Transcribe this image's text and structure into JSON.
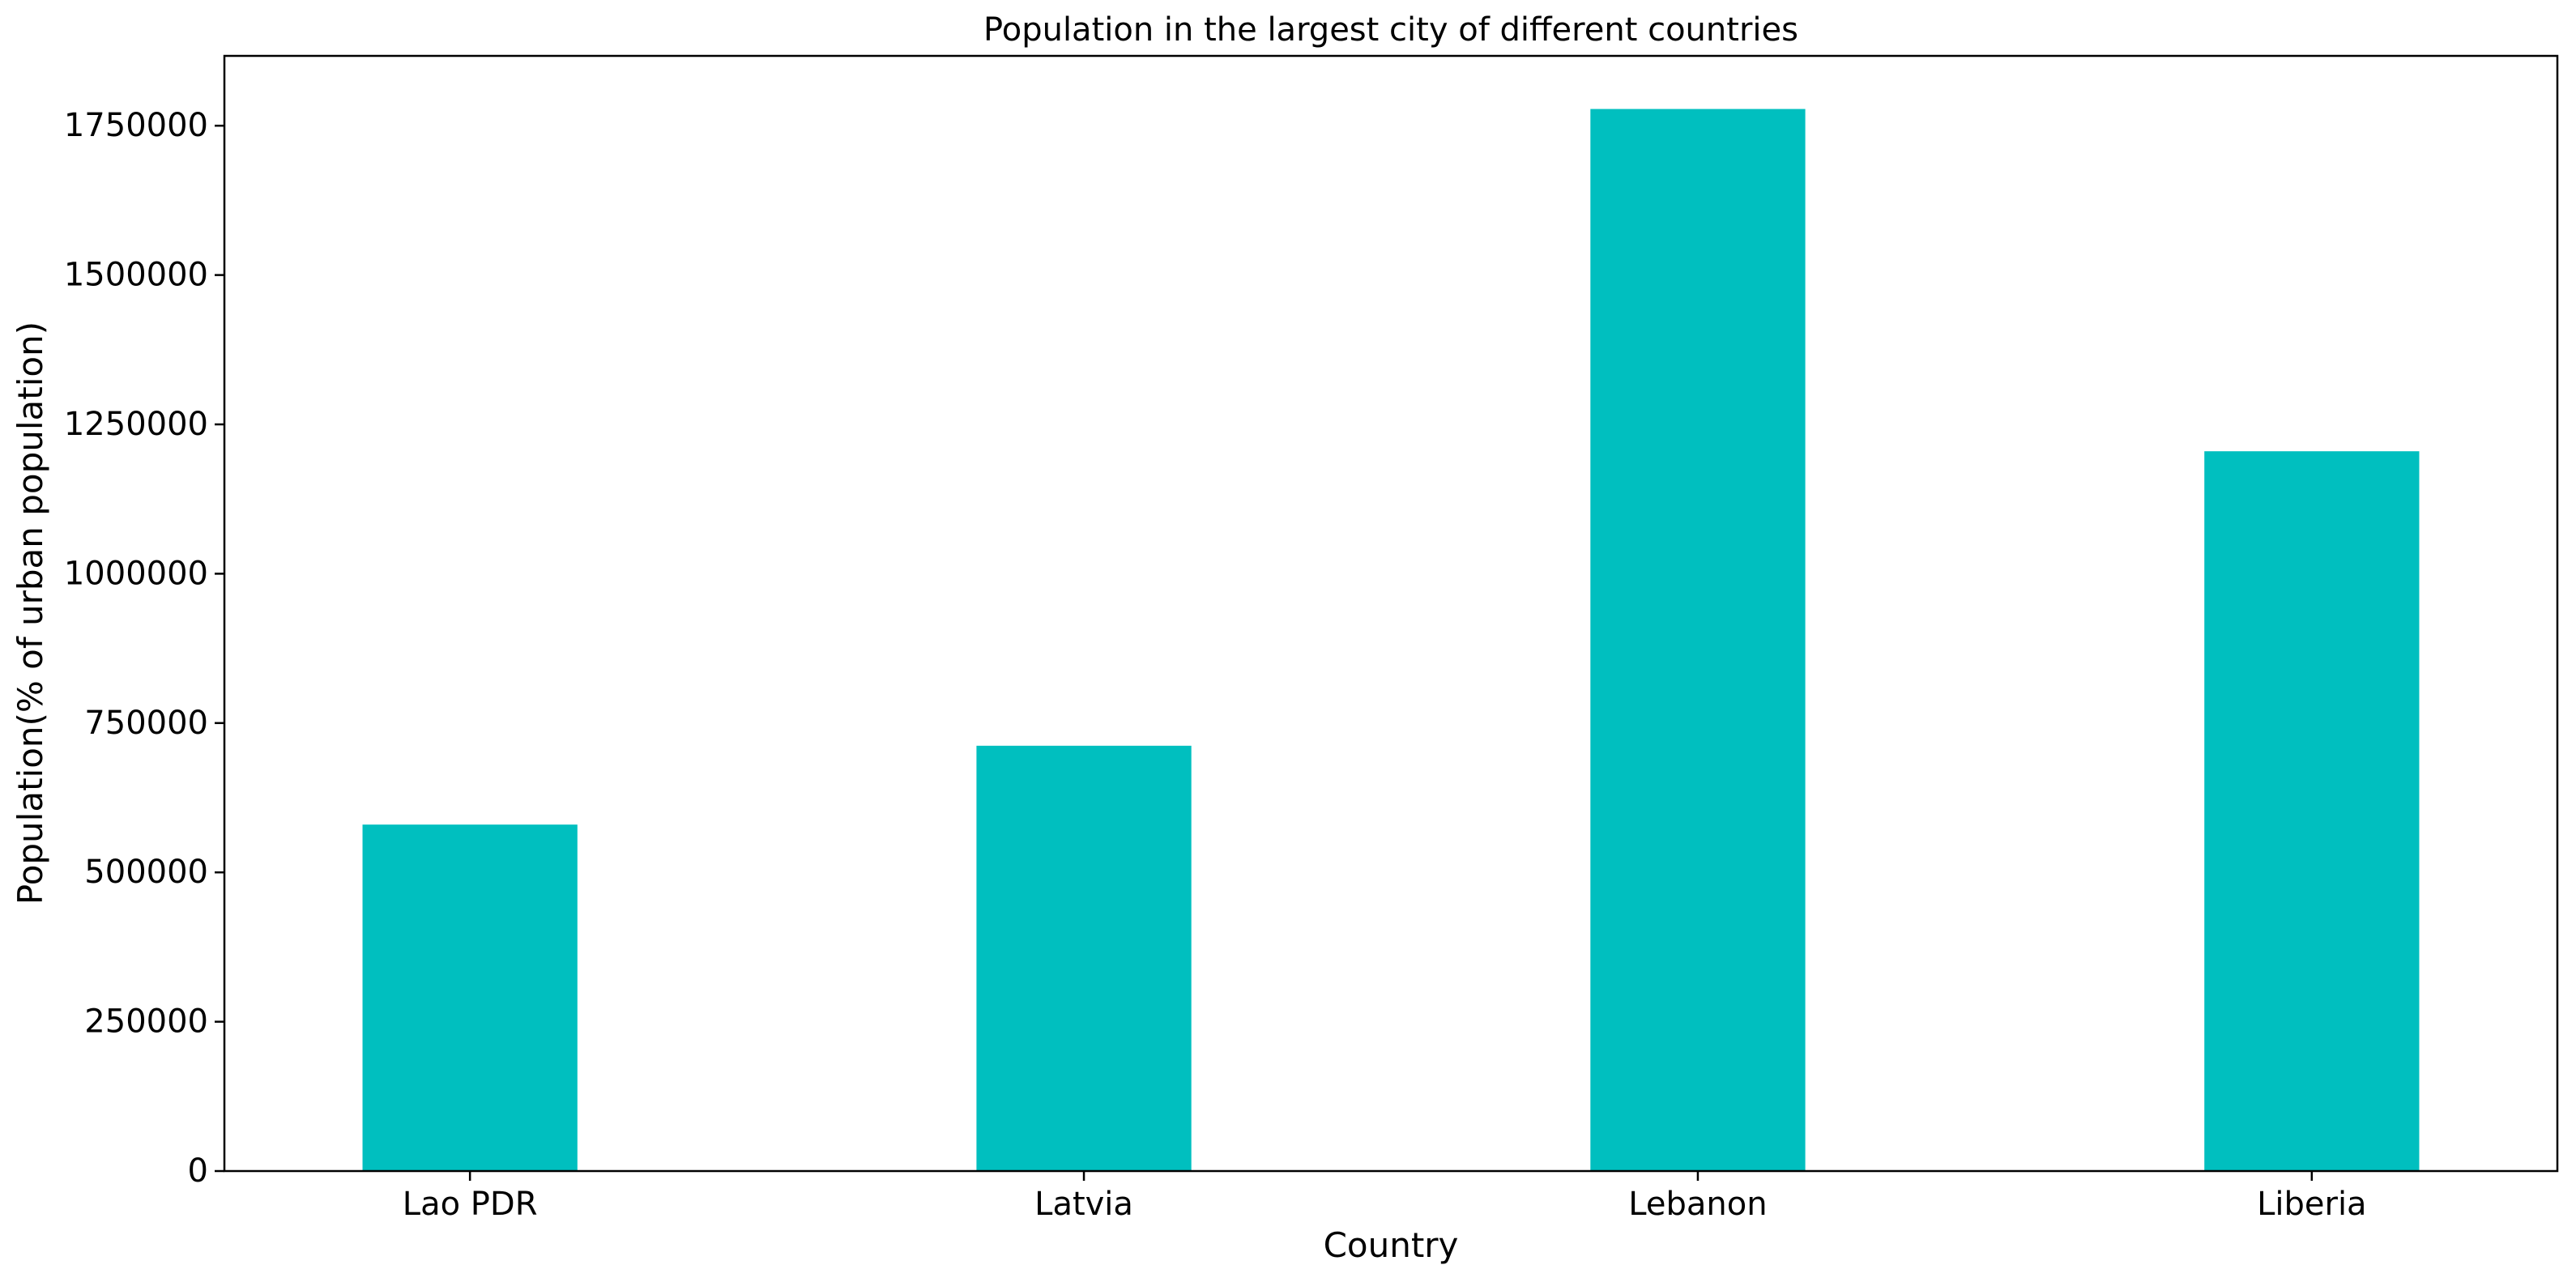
{
  "chart_data": {
    "type": "bar",
    "title": "Population in the largest city of different countries",
    "xlabel": "Country",
    "ylabel": "Population(% of urban population)",
    "categories": [
      "Lao PDR",
      "Latvia",
      "Lebanon",
      "Liberia"
    ],
    "values": [
      580000,
      712000,
      1778000,
      1205000
    ],
    "ylim": [
      0,
      1866900
    ],
    "yticks": [
      0,
      250000,
      500000,
      750000,
      1000000,
      1250000,
      1500000,
      1750000
    ],
    "bar_color": "#00bfbf",
    "grid": false,
    "legend": "none"
  }
}
